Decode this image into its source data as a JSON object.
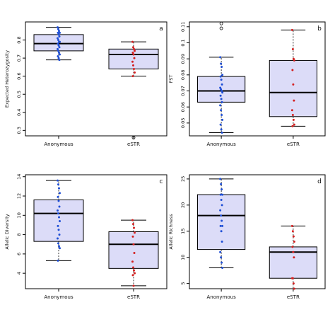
{
  "chart_data": [
    {
      "type": "boxplot",
      "panel_letter": "a",
      "ylabel": "Expected Heterozygosity",
      "categories": [
        "Anonymous",
        "eSTR"
      ],
      "ylim": [
        0.27,
        0.9
      ],
      "yticks": [
        0.3,
        0.4,
        0.5,
        0.6,
        0.7,
        0.8
      ],
      "boxes": [
        {
          "category": "Anonymous",
          "whisker_low": 0.69,
          "q1": 0.74,
          "median": 0.78,
          "q3": 0.83,
          "whisker_high": 0.87,
          "outliers": []
        },
        {
          "category": "eSTR",
          "whisker_low": 0.6,
          "q1": 0.64,
          "median": 0.72,
          "q3": 0.75,
          "whisker_high": 0.79,
          "outliers": [
            0.26
          ]
        }
      ],
      "points": [
        {
          "category": "Anonymous",
          "color": "#1f4fd6",
          "values": [
            0.87,
            0.86,
            0.85,
            0.84,
            0.84,
            0.83,
            0.82,
            0.81,
            0.8,
            0.79,
            0.79,
            0.78,
            0.77,
            0.76,
            0.75,
            0.74,
            0.73,
            0.72,
            0.71,
            0.7,
            0.69
          ]
        },
        {
          "category": "eSTR",
          "color": "#d42020",
          "values": [
            0.79,
            0.76,
            0.75,
            0.74,
            0.73,
            0.72,
            0.7,
            0.68,
            0.66,
            0.64,
            0.62,
            0.6
          ]
        }
      ]
    },
    {
      "type": "boxplot",
      "panel_letter": "b",
      "ylabel": "FST",
      "categories": [
        "Anonymous",
        "eSTR"
      ],
      "ylim": [
        0.042,
        0.113
      ],
      "yticks": [
        0.05,
        0.06,
        0.07,
        0.08,
        0.09,
        0.1,
        0.11
      ],
      "boxes": [
        {
          "category": "Anonymous",
          "whisker_low": 0.044,
          "q1": 0.063,
          "median": 0.07,
          "q3": 0.079,
          "whisker_high": 0.091,
          "outliers": [
            0.109,
            0.112
          ]
        },
        {
          "category": "eSTR",
          "whisker_low": 0.048,
          "q1": 0.054,
          "median": 0.069,
          "q3": 0.089,
          "whisker_high": 0.108,
          "outliers": []
        }
      ],
      "points": [
        {
          "category": "Anonymous",
          "color": "#1f4fd6",
          "values": [
            0.091,
            0.087,
            0.085,
            0.08,
            0.079,
            0.077,
            0.074,
            0.072,
            0.071,
            0.07,
            0.069,
            0.067,
            0.065,
            0.063,
            0.061,
            0.058,
            0.055,
            0.052,
            0.049,
            0.046,
            0.044
          ]
        },
        {
          "category": "eSTR",
          "color": "#d42020",
          "values": [
            0.108,
            0.096,
            0.09,
            0.089,
            0.083,
            0.074,
            0.064,
            0.058,
            0.055,
            0.052,
            0.049,
            0.048
          ]
        }
      ]
    },
    {
      "type": "boxplot",
      "panel_letter": "c",
      "ylabel": "Allelic Diversity",
      "categories": [
        "Anonymous",
        "eSTR"
      ],
      "ylim": [
        2.4,
        14.2
      ],
      "yticks": [
        4,
        6,
        8,
        10,
        12,
        14
      ],
      "boxes": [
        {
          "category": "Anonymous",
          "whisker_low": 5.3,
          "q1": 7.3,
          "median": 10.2,
          "q3": 11.6,
          "whisker_high": 13.6,
          "outliers": []
        },
        {
          "category": "eSTR",
          "whisker_low": 2.7,
          "q1": 4.5,
          "median": 7.0,
          "q3": 8.3,
          "whisker_high": 9.5,
          "outliers": []
        }
      ],
      "points": [
        {
          "category": "Anonymous",
          "color": "#1f4fd6",
          "values": [
            13.6,
            13.2,
            12.8,
            12.3,
            11.9,
            11.5,
            10.9,
            10.5,
            10.2,
            9.8,
            9.4,
            8.9,
            8.5,
            8.0,
            7.6,
            7.1,
            6.8,
            6.6,
            5.3
          ]
        },
        {
          "category": "eSTR",
          "color": "#d42020",
          "values": [
            9.5,
            9.1,
            8.7,
            8.2,
            7.8,
            7.0,
            6.1,
            5.2,
            4.6,
            4.3,
            4.0,
            3.8,
            2.7
          ]
        }
      ]
    },
    {
      "type": "boxplot",
      "panel_letter": "d",
      "ylabel": "Allelic Richness",
      "categories": [
        "Anonymous",
        "eSTR"
      ],
      "ylim": [
        4.0,
        25.8
      ],
      "yticks": [
        5,
        10,
        15,
        20,
        25
      ],
      "boxes": [
        {
          "category": "Anonymous",
          "whisker_low": 8,
          "q1": 11.5,
          "median": 18,
          "q3": 22,
          "whisker_high": 25,
          "outliers": []
        },
        {
          "category": "eSTR",
          "whisker_low": 4,
          "q1": 6,
          "median": 11,
          "q3": 12,
          "whisker_high": 16,
          "outliers": []
        }
      ],
      "points": [
        {
          "category": "Anonymous",
          "color": "#1f4fd6",
          "values": [
            25,
            24,
            23,
            22,
            22,
            21,
            20,
            19,
            18,
            17,
            16,
            16,
            15,
            13,
            11,
            10,
            9,
            8
          ]
        },
        {
          "category": "eSTR",
          "color": "#d42020",
          "values": [
            16,
            15,
            14,
            13,
            12,
            11,
            10,
            6,
            6,
            5,
            4
          ]
        }
      ]
    }
  ]
}
